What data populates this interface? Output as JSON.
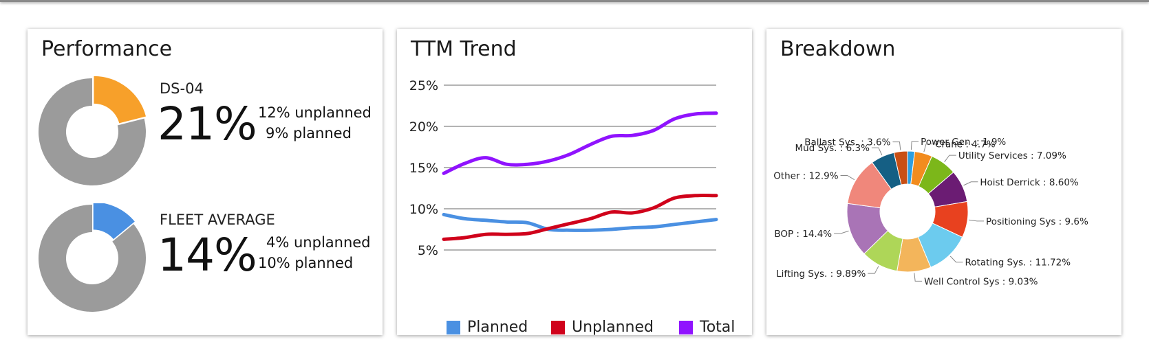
{
  "performance": {
    "title": "Performance",
    "items": [
      {
        "label": "DS-04",
        "value": "21%",
        "percent": 21,
        "unplanned": "12% unplanned",
        "planned": "9% planned",
        "color": "#F7A02A"
      },
      {
        "label": "FLEET AVERAGE",
        "value": "14%",
        "percent": 14,
        "unplanned": "4% unplanned",
        "planned": "10% planned",
        "color": "#4A90E2"
      }
    ],
    "rest_color": "#9B9B9B"
  },
  "trend": {
    "title": "TTM Trend"
  },
  "breakdown": {
    "title": "Breakdown"
  },
  "chart_data": [
    {
      "type": "line",
      "title": "TTM Trend",
      "ylim": [
        5,
        25
      ],
      "yticks": [
        "25%",
        "20%",
        "15%",
        "10%",
        "5%"
      ],
      "grid": true,
      "legend": "bottom",
      "x": [
        0,
        1,
        2,
        3,
        4,
        5,
        6,
        7,
        8,
        9,
        10,
        11,
        12,
        13
      ],
      "series": [
        {
          "name": "Planned",
          "color": "#4A90E2",
          "values": [
            9.3,
            8.8,
            8.6,
            8.4,
            8.3,
            7.5,
            7.4,
            7.4,
            7.5,
            7.7,
            7.8,
            8.1,
            8.4,
            8.7
          ]
        },
        {
          "name": "Unplanned",
          "color": "#D0021B",
          "values": [
            6.3,
            6.5,
            6.9,
            6.9,
            7.0,
            7.6,
            8.2,
            8.8,
            9.6,
            9.5,
            10.1,
            11.3,
            11.6,
            11.6
          ]
        },
        {
          "name": "Total",
          "color": "#9013FE",
          "values": [
            14.3,
            15.5,
            16.2,
            15.4,
            15.4,
            15.8,
            16.6,
            17.8,
            18.8,
            18.9,
            19.5,
            20.9,
            21.5,
            21.6
          ]
        }
      ]
    },
    {
      "type": "pie",
      "title": "Breakdown",
      "slices": [
        {
          "label": "Power Gen. : 1.9%",
          "value": 1.9,
          "color": "#2D9FE0"
        },
        {
          "label": "Crane : 4.7%",
          "value": 4.7,
          "color": "#F28C1E"
        },
        {
          "label": "Utility Services : 7.09%",
          "value": 7.09,
          "color": "#7CB71A"
        },
        {
          "label": "Hoist Derrick : 8.60%",
          "value": 8.6,
          "color": "#6B1C73"
        },
        {
          "label": "Positioning Sys : 9.6%",
          "value": 9.6,
          "color": "#E8411F"
        },
        {
          "label": "Rotating Sys. : 11.72%",
          "value": 11.72,
          "color": "#6CCBEE"
        },
        {
          "label": "Well Control Sys : 9.03%",
          "value": 9.03,
          "color": "#F3B55B"
        },
        {
          "label": "Lifting Sys. : 9.89%",
          "value": 9.89,
          "color": "#AED658"
        },
        {
          "label": "BOP : 14.4%",
          "value": 14.4,
          "color": "#A974B6"
        },
        {
          "label": "Other : 12.9%",
          "value": 12.9,
          "color": "#F0877B"
        },
        {
          "label": "Mud Sys. : 6.3%",
          "value": 6.3,
          "color": "#155F84"
        },
        {
          "label": "Ballast Sys. : 3.6%",
          "value": 3.6,
          "color": "#C84F14"
        }
      ]
    }
  ]
}
